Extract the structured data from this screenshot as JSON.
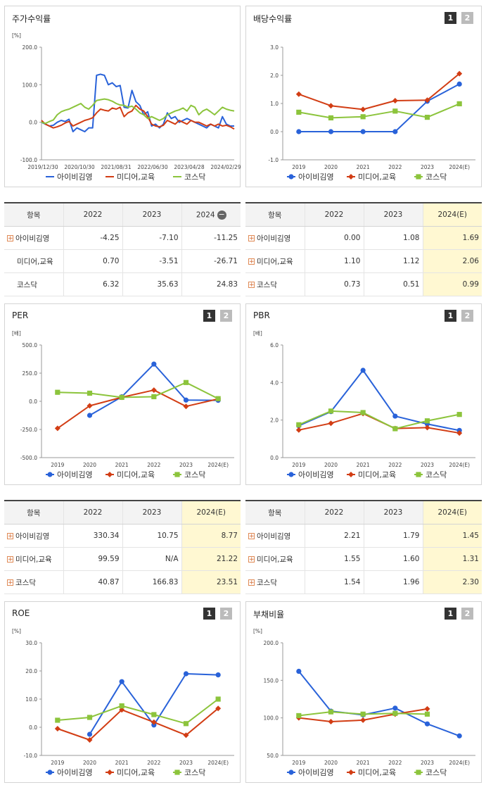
{
  "colors": {
    "stock": "#2962d9",
    "industry": "#d23d14",
    "index": "#8cc43c"
  },
  "icons": {
    "expand": "plus-square-icon",
    "collapse": "minus-circle-icon"
  },
  "tables": {
    "stock_return": {
      "headers": [
        "항목",
        "2022",
        "2023",
        "2024"
      ],
      "rows": [
        {
          "label": "아이비김영",
          "icon": true,
          "values": [
            "-4.25",
            "-7.10",
            "-11.25"
          ]
        },
        {
          "label": "미디어,교육",
          "icon": false,
          "values": [
            "0.70",
            "-3.51",
            "-26.71"
          ]
        },
        {
          "label": "코스닥",
          "icon": false,
          "values": [
            "6.32",
            "35.63",
            "24.83"
          ]
        }
      ]
    },
    "dividend": {
      "headers": [
        "항목",
        "2022",
        "2023",
        "2024(E)"
      ],
      "rows": [
        {
          "label": "아이비김영",
          "icon": true,
          "values": [
            "0.00",
            "1.08",
            "1.69"
          ]
        },
        {
          "label": "미디어,교육",
          "icon": true,
          "values": [
            "1.10",
            "1.12",
            "2.06"
          ]
        },
        {
          "label": "코스닥",
          "icon": true,
          "values": [
            "0.73",
            "0.51",
            "0.99"
          ]
        }
      ]
    },
    "per": {
      "headers": [
        "항목",
        "2022",
        "2023",
        "2024(E)"
      ],
      "rows": [
        {
          "label": "아이비김영",
          "icon": true,
          "values": [
            "330.34",
            "10.75",
            "8.77"
          ]
        },
        {
          "label": "미디어,교육",
          "icon": true,
          "values": [
            "99.59",
            "N/A",
            "21.22"
          ]
        },
        {
          "label": "코스닥",
          "icon": true,
          "values": [
            "40.87",
            "166.83",
            "23.51"
          ]
        }
      ]
    },
    "pbr": {
      "headers": [
        "항목",
        "2022",
        "2023",
        "2024(E)"
      ],
      "rows": [
        {
          "label": "아이비김영",
          "icon": true,
          "values": [
            "2.21",
            "1.79",
            "1.45"
          ]
        },
        {
          "label": "미디어,교육",
          "icon": true,
          "values": [
            "1.55",
            "1.60",
            "1.31"
          ]
        },
        {
          "label": "코스닥",
          "icon": true,
          "values": [
            "1.54",
            "1.96",
            "2.30"
          ]
        }
      ]
    }
  },
  "chart_data": [
    {
      "id": "stock_return",
      "type": "line",
      "title": "주가수익률",
      "unit": "[%]",
      "badges": [],
      "ylim": [
        -100,
        200
      ],
      "yticks": [
        "200.0",
        "100.0",
        "0.0",
        "-100.0"
      ],
      "xticklabels": [
        "2019/12/30",
        "2020/10/30",
        "2021/08/31",
        "2022/06/30",
        "2023/04/28",
        "2024/02/29"
      ],
      "legend": [
        "아이비김영",
        "미디어,교육",
        "코스닥"
      ],
      "series": [
        {
          "name": "아이비김영",
          "color": "#2962d9",
          "values": [
            0,
            -5,
            -10,
            -8,
            0,
            5,
            2,
            8,
            -25,
            -15,
            -20,
            -25,
            -15,
            -15,
            125,
            128,
            125,
            100,
            105,
            95,
            98,
            40,
            38,
            85,
            55,
            45,
            20,
            28,
            -10,
            -5,
            -15,
            -5,
            25,
            10,
            15,
            0,
            5,
            10,
            5,
            0,
            -5,
            -10,
            -15,
            -5,
            -10,
            -15,
            15,
            -5,
            -10,
            -10
          ]
        },
        {
          "name": "미디어,교육",
          "color": "#d23d14",
          "values": [
            5,
            -5,
            -10,
            -15,
            -12,
            -8,
            -2,
            2,
            -10,
            -5,
            0,
            5,
            8,
            12,
            25,
            35,
            32,
            30,
            38,
            35,
            40,
            15,
            25,
            30,
            45,
            35,
            30,
            15,
            -5,
            -10,
            -12,
            -8,
            5,
            0,
            -5,
            5,
            0,
            -5,
            5,
            0,
            0,
            -5,
            -10,
            -5,
            -10,
            -5,
            -10,
            -8,
            -12,
            -18
          ]
        },
        {
          "name": "코스닥",
          "color": "#8cc43c",
          "values": [
            0,
            -3,
            2,
            6,
            20,
            28,
            32,
            35,
            40,
            45,
            50,
            40,
            35,
            45,
            58,
            60,
            62,
            60,
            56,
            50,
            46,
            45,
            40,
            43,
            35,
            25,
            20,
            10,
            15,
            10,
            5,
            10,
            20,
            25,
            30,
            33,
            38,
            30,
            45,
            40,
            20,
            30,
            35,
            28,
            20,
            30,
            40,
            35,
            32,
            30
          ]
        }
      ]
    },
    {
      "id": "dividend",
      "type": "line",
      "title": "배당수익률",
      "unit": "",
      "badges": [
        "1",
        "2"
      ],
      "ylim": [
        -1,
        3
      ],
      "yticks": [
        "3.0",
        "2.0",
        "1.0",
        "0.0",
        "-1.0"
      ],
      "categories": [
        "2019",
        "2020",
        "2021",
        "2022",
        "2023",
        "2024(E)"
      ],
      "legend": [
        "아이비김영",
        "미디어,교육",
        "코스닥"
      ],
      "series": [
        {
          "name": "아이비김영",
          "color": "#2962d9",
          "marker": "circle",
          "values": [
            0,
            0,
            0,
            0,
            1.08,
            1.69
          ]
        },
        {
          "name": "미디어,교육",
          "color": "#d23d14",
          "marker": "diamond",
          "values": [
            1.33,
            0.92,
            0.79,
            1.1,
            1.12,
            2.06
          ]
        },
        {
          "name": "코스닥",
          "color": "#8cc43c",
          "marker": "square",
          "values": [
            0.69,
            0.49,
            0.53,
            0.73,
            0.51,
            0.99
          ]
        }
      ]
    },
    {
      "id": "per",
      "type": "line",
      "title": "PER",
      "unit": "[배]",
      "badges": [
        "1",
        "2"
      ],
      "ylim": [
        -500,
        500
      ],
      "yticks": [
        "500.0",
        "250.0",
        "0.0",
        "-250.0",
        "-500.0"
      ],
      "categories": [
        "2019",
        "2020",
        "2021",
        "2022",
        "2023",
        "2024(E)"
      ],
      "legend": [
        "아이비김영",
        "미디어,교육",
        "코스닥"
      ],
      "series": [
        {
          "name": "아이비김영",
          "color": "#2962d9",
          "marker": "circle",
          "values": [
            null,
            -125,
            40,
            330.34,
            10.75,
            8.77
          ]
        },
        {
          "name": "미디어,교육",
          "color": "#d23d14",
          "marker": "diamond",
          "values": [
            -240,
            -40,
            35,
            99.59,
            -45,
            21.22
          ]
        },
        {
          "name": "코스닥",
          "color": "#8cc43c",
          "marker": "square",
          "values": [
            80,
            72,
            35,
            40.87,
            166.83,
            23.51
          ]
        }
      ]
    },
    {
      "id": "pbr",
      "type": "line",
      "title": "PBR",
      "unit": "[배]",
      "badges": [
        "1",
        "2"
      ],
      "ylim": [
        0,
        6
      ],
      "yticks": [
        "6.0",
        "4.0",
        "2.0",
        "0.0"
      ],
      "categories": [
        "2019",
        "2020",
        "2021",
        "2022",
        "2023",
        "2024(E)"
      ],
      "legend": [
        "아이비김영",
        "미디어,교육",
        "코스닥"
      ],
      "series": [
        {
          "name": "아이비김영",
          "color": "#2962d9",
          "marker": "circle",
          "values": [
            1.7,
            2.45,
            4.65,
            2.21,
            1.79,
            1.45
          ]
        },
        {
          "name": "미디어,교육",
          "color": "#d23d14",
          "marker": "diamond",
          "values": [
            1.47,
            1.83,
            2.35,
            1.55,
            1.6,
            1.31
          ]
        },
        {
          "name": "코스닥",
          "color": "#8cc43c",
          "marker": "square",
          "values": [
            1.75,
            2.48,
            2.4,
            1.54,
            1.96,
            2.3
          ]
        }
      ]
    },
    {
      "id": "roe",
      "type": "line",
      "title": "ROE",
      "unit": "[%]",
      "badges": [
        "1",
        "2"
      ],
      "ylim": [
        -10,
        30
      ],
      "yticks": [
        "30.0",
        "20.0",
        "10.0",
        "0.0",
        "-10.0"
      ],
      "categories": [
        "2019",
        "2020",
        "2021",
        "2022",
        "2023",
        "2024(E)"
      ],
      "legend": [
        "아이비김영",
        "미디어,교육",
        "코스닥"
      ],
      "series": [
        {
          "name": "아이비김영",
          "color": "#2962d9",
          "marker": "circle",
          "values": [
            null,
            -2.5,
            16.2,
            0.8,
            19.0,
            18.6
          ]
        },
        {
          "name": "미디어,교육",
          "color": "#d23d14",
          "marker": "diamond",
          "values": [
            -0.5,
            -4.5,
            6.2,
            1.8,
            -2.8,
            6.7
          ]
        },
        {
          "name": "코스닥",
          "color": "#8cc43c",
          "marker": "square",
          "values": [
            2.5,
            3.5,
            7.6,
            4.5,
            1.3,
            10.0
          ]
        }
      ]
    },
    {
      "id": "debt",
      "type": "line",
      "title": "부채비율",
      "unit": "[%]",
      "badges": [
        "1",
        "2"
      ],
      "ylim": [
        50,
        200
      ],
      "yticks": [
        "200.0",
        "150.0",
        "100.0",
        "50.0"
      ],
      "categories": [
        "2019",
        "2020",
        "2021",
        "2022",
        "2023",
        "2024(E)"
      ],
      "legend": [
        "아이비김영",
        "미디어,교육",
        "코스닥"
      ],
      "series": [
        {
          "name": "아이비김영",
          "color": "#2962d9",
          "marker": "circle",
          "values": [
            162,
            109,
            104,
            113,
            92,
            76
          ]
        },
        {
          "name": "미디어,교육",
          "color": "#d23d14",
          "marker": "diamond",
          "values": [
            100,
            95,
            97,
            105,
            112,
            null
          ]
        },
        {
          "name": "코스닥",
          "color": "#8cc43c",
          "marker": "square",
          "values": [
            103,
            108,
            105,
            106,
            105,
            null
          ]
        }
      ]
    }
  ]
}
